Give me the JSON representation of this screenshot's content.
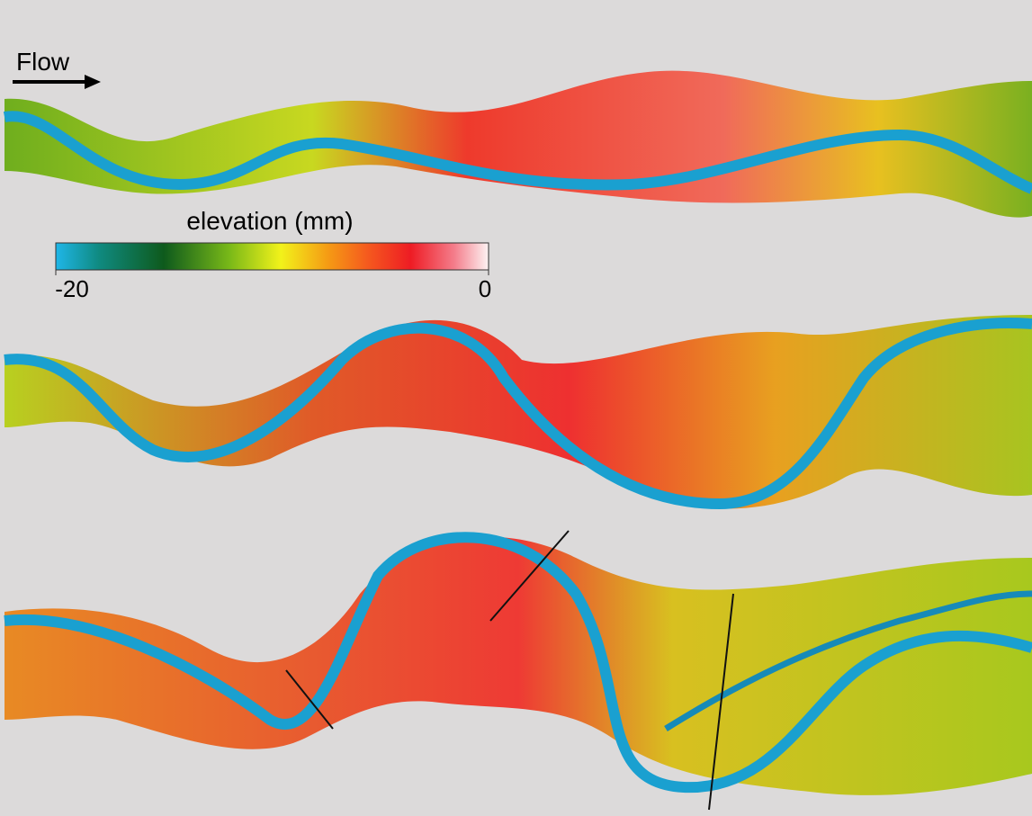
{
  "flow_label": "Flow",
  "colorbar": {
    "title": "elevation (mm)",
    "ticks": [
      -20,
      0
    ]
  }
}
